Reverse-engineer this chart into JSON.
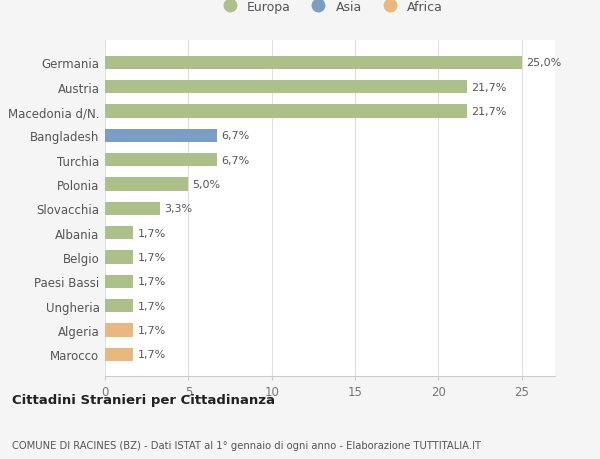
{
  "categories": [
    "Marocco",
    "Algeria",
    "Ungheria",
    "Paesi Bassi",
    "Belgio",
    "Albania",
    "Slovacchia",
    "Polonia",
    "Turchia",
    "Bangladesh",
    "Macedonia d/N.",
    "Austria",
    "Germania"
  ],
  "values": [
    1.7,
    1.7,
    1.7,
    1.7,
    1.7,
    1.7,
    3.3,
    5.0,
    6.7,
    6.7,
    21.7,
    21.7,
    25.0
  ],
  "labels": [
    "1,7%",
    "1,7%",
    "1,7%",
    "1,7%",
    "1,7%",
    "1,7%",
    "3,3%",
    "5,0%",
    "6,7%",
    "6,7%",
    "21,7%",
    "21,7%",
    "25,0%"
  ],
  "colors": [
    "#e8b87e",
    "#e8b87e",
    "#adc08a",
    "#adc08a",
    "#adc08a",
    "#adc08a",
    "#adc08a",
    "#adc08a",
    "#adc08a",
    "#7b9ec5",
    "#adc08a",
    "#adc08a",
    "#adc08a"
  ],
  "legend_items": [
    {
      "label": "Europa",
      "color": "#adc08a"
    },
    {
      "label": "Asia",
      "color": "#7b9ec5"
    },
    {
      "label": "Africa",
      "color": "#e8b87e"
    }
  ],
  "title": "Cittadini Stranieri per Cittadinanza",
  "subtitle": "COMUNE DI RACINES (BZ) - Dati ISTAT al 1° gennaio di ogni anno - Elaborazione TUTTITALIA.IT",
  "xlim": [
    0,
    27
  ],
  "xticks": [
    0,
    5,
    10,
    15,
    20,
    25
  ],
  "background_color": "#f5f5f5",
  "plot_background": "#ffffff"
}
